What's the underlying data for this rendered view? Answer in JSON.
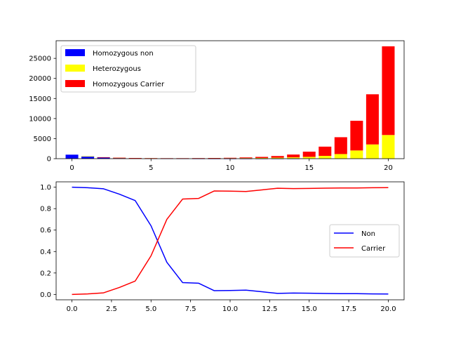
{
  "chart_data": [
    {
      "type": "bar",
      "stacked": true,
      "title": "",
      "xlabel": "",
      "ylabel": "",
      "x": [
        0,
        1,
        2,
        3,
        4,
        5,
        6,
        7,
        8,
        9,
        10,
        11,
        12,
        13,
        14,
        15,
        16,
        17,
        18,
        19,
        20
      ],
      "xlim": [
        -1,
        21
      ],
      "ylim": [
        0,
        29400
      ],
      "xticks": [
        0,
        5,
        10,
        15,
        20
      ],
      "yticks": [
        0,
        5000,
        10000,
        15000,
        20000,
        25000
      ],
      "grid": false,
      "legend_position": "upper-left",
      "series": [
        {
          "name": "Homozygous non",
          "color": "#0000ff",
          "values": [
            1000,
            600,
            350,
            210,
            130,
            70,
            35,
            18,
            9,
            5,
            3,
            2,
            1,
            1,
            1,
            0,
            0,
            0,
            0,
            0,
            0
          ]
        },
        {
          "name": "Heterozygous",
          "color": "#ffff00",
          "values": [
            0,
            5,
            12,
            20,
            30,
            40,
            50,
            60,
            75,
            90,
            110,
            140,
            180,
            240,
            330,
            450,
            700,
            1150,
            2050,
            3550,
            5900
          ]
        },
        {
          "name": "Homozygous Carrier",
          "color": "#ff0000",
          "values": [
            0,
            0,
            2,
            5,
            10,
            20,
            30,
            40,
            55,
            75,
            110,
            170,
            260,
            420,
            700,
            1300,
            2300,
            4200,
            7400,
            12500,
            22100
          ]
        }
      ]
    },
    {
      "type": "line",
      "title": "",
      "xlabel": "",
      "ylabel": "",
      "x": [
        0,
        1,
        2,
        3,
        4,
        5,
        6,
        7,
        8,
        9,
        10,
        11,
        12,
        13,
        14,
        15,
        16,
        17,
        18,
        19,
        20
      ],
      "xlim": [
        -1,
        21
      ],
      "ylim": [
        -0.05,
        1.05
      ],
      "xticks": [
        "0.0",
        "2.5",
        "5.0",
        "7.5",
        "10.0",
        "12.5",
        "15.0",
        "17.5",
        "20.0"
      ],
      "xtick_values": [
        0,
        2.5,
        5,
        7.5,
        10,
        12.5,
        15,
        17.5,
        20
      ],
      "yticks": [
        "0.0",
        "0.2",
        "0.4",
        "0.6",
        "0.8",
        "1.0"
      ],
      "ytick_values": [
        0,
        0.2,
        0.4,
        0.6,
        0.8,
        1.0
      ],
      "grid": false,
      "legend_position": "center-right",
      "series": [
        {
          "name": "Non",
          "color": "#0000ff",
          "values": [
            1.0,
            0.995,
            0.985,
            0.935,
            0.875,
            0.64,
            0.3,
            0.11,
            0.105,
            0.035,
            0.037,
            0.04,
            0.025,
            0.01,
            0.013,
            0.011,
            0.009,
            0.007,
            0.007,
            0.005,
            0.004
          ]
        },
        {
          "name": "Carrier",
          "color": "#ff0000",
          "values": [
            0.0,
            0.005,
            0.015,
            0.065,
            0.125,
            0.36,
            0.7,
            0.89,
            0.895,
            0.965,
            0.963,
            0.96,
            0.975,
            0.99,
            0.987,
            0.989,
            0.991,
            0.993,
            0.993,
            0.995,
            0.996
          ]
        }
      ]
    }
  ]
}
